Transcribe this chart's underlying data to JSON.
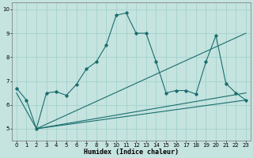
{
  "xlabel": "Humidex (Indice chaleur)",
  "bg_color": "#c5e3df",
  "grid_color": "#9dcfca",
  "line_color": "#1a6e6e",
  "xlim": [
    -0.5,
    23.5
  ],
  "ylim": [
    4.5,
    10.3
  ],
  "xticks": [
    0,
    1,
    2,
    3,
    4,
    5,
    6,
    7,
    8,
    9,
    10,
    11,
    12,
    13,
    14,
    15,
    16,
    17,
    18,
    19,
    20,
    21,
    22,
    23
  ],
  "yticks": [
    5,
    6,
    7,
    8,
    9,
    10
  ],
  "main_x": [
    0,
    1,
    2,
    3,
    4,
    5,
    6,
    7,
    8,
    9,
    10,
    11,
    12,
    13,
    14,
    15,
    16,
    17,
    18,
    19,
    20,
    21,
    22,
    23
  ],
  "main_y": [
    6.7,
    6.2,
    5.0,
    6.5,
    6.55,
    6.4,
    6.85,
    7.5,
    7.8,
    8.5,
    9.75,
    9.85,
    9.0,
    9.0,
    7.8,
    6.5,
    6.6,
    6.6,
    6.45,
    7.8,
    8.9,
    6.9,
    6.5,
    6.2
  ],
  "trend1_x": [
    2,
    23
  ],
  "trend1_y": [
    5.0,
    6.2
  ],
  "trend2_x": [
    2,
    23
  ],
  "trend2_y": [
    5.0,
    9.0
  ],
  "trend3_x": [
    0,
    2,
    23
  ],
  "trend3_y": [
    6.5,
    5.0,
    6.5
  ]
}
